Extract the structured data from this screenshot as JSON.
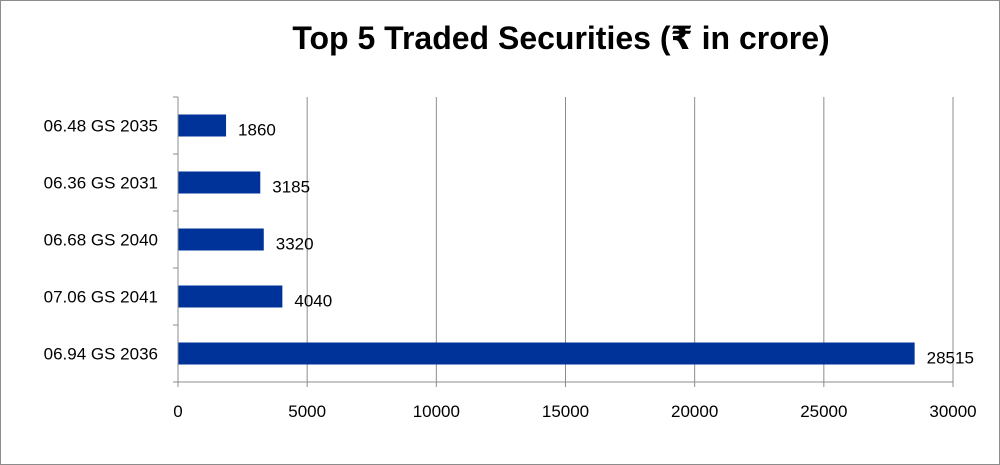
{
  "chart_data": {
    "type": "bar",
    "orientation": "horizontal",
    "title": "Top 5 Traded Securities (₹ in crore)",
    "categories": [
      "06.48 GS 2035",
      "06.36 GS 2031",
      "06.68 GS 2040",
      "07.06 GS 2041",
      "06.94 GS 2036"
    ],
    "values": [
      1860,
      3185,
      3320,
      4040,
      28515
    ],
    "data_labels": [
      "1860",
      "3185",
      "3320",
      "4040",
      "28515"
    ],
    "xlim": [
      0,
      30000
    ],
    "x_ticks": [
      0,
      5000,
      10000,
      15000,
      20000,
      25000,
      30000
    ],
    "x_tick_labels": [
      "0",
      "5000",
      "10000",
      "15000",
      "20000",
      "25000",
      "30000"
    ],
    "grid": "vertical",
    "legend": "none",
    "bar_color": "#003399"
  }
}
